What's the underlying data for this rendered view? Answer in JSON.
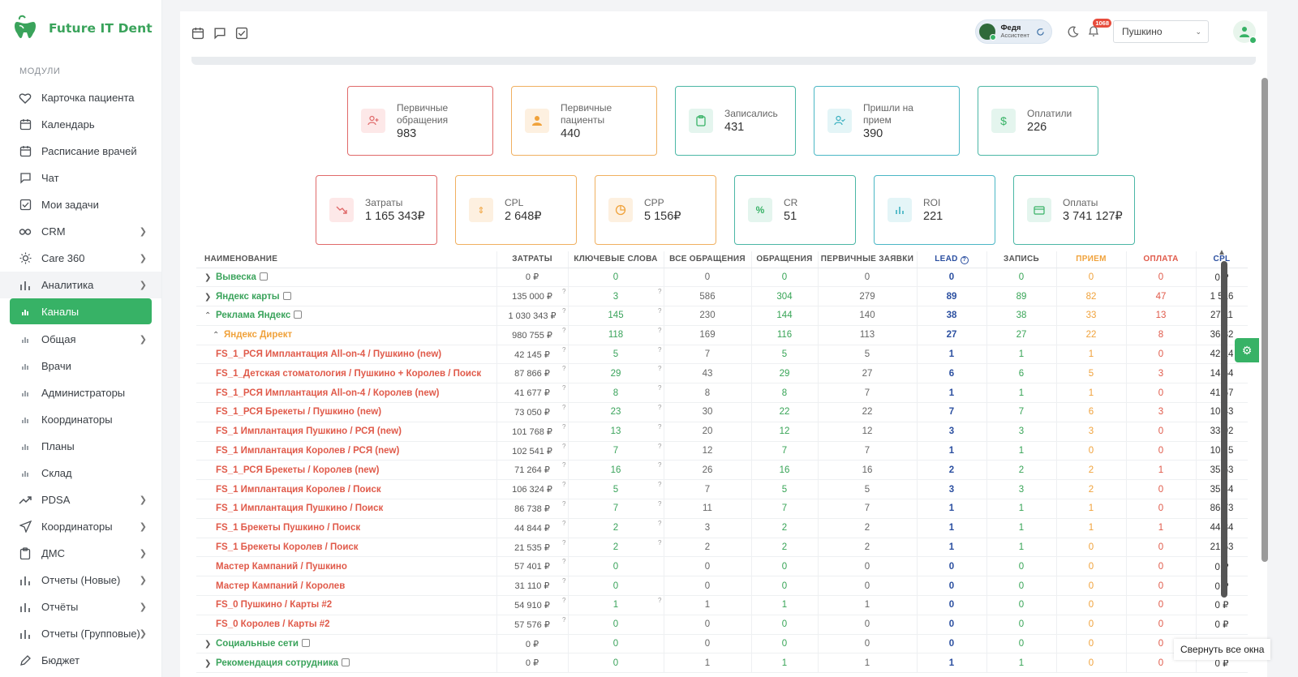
{
  "brand": {
    "name": "Future IT Dent"
  },
  "sidebar": {
    "section_label": "МОДУЛИ",
    "items": [
      {
        "label": "Карточка пациента",
        "icon": "heart-icon"
      },
      {
        "label": "Календарь",
        "icon": "calendar-icon"
      },
      {
        "label": "Расписание врачей",
        "icon": "calendar-icon"
      },
      {
        "label": "Чат",
        "icon": "chat-icon"
      },
      {
        "label": "Мои задачи",
        "icon": "checkbox-icon"
      },
      {
        "label": "CRM",
        "icon": "infinity-icon"
      },
      {
        "label": "Care 360",
        "icon": "sun-icon"
      },
      {
        "label": "Аналитика",
        "icon": "bar-chart-icon"
      },
      {
        "label": "Каналы"
      },
      {
        "label": "Общая"
      },
      {
        "label": "Врачи"
      },
      {
        "label": "Администраторы"
      },
      {
        "label": "Координаторы"
      },
      {
        "label": "Планы"
      },
      {
        "label": "Склад"
      },
      {
        "label": "PDSA",
        "icon": "trend-icon"
      },
      {
        "label": "Координаторы",
        "icon": "send-icon"
      },
      {
        "label": "ДМС",
        "icon": "clipboard-icon"
      },
      {
        "label": "Отчеты (Новые)",
        "icon": "bar-chart-icon"
      },
      {
        "label": "Отчёты",
        "icon": "bar-chart-icon"
      },
      {
        "label": "Отчеты (Групповые)",
        "icon": "bar-chart-icon"
      },
      {
        "label": "Бюджет",
        "icon": "pen-icon"
      }
    ]
  },
  "topbar": {
    "user_name": "Федя",
    "user_role": "Ассистент",
    "notif_count": "1068",
    "location": "Пушкино"
  },
  "kpi_top": [
    {
      "label": "Первичные обращения",
      "value": "983"
    },
    {
      "label": "Первичные пациенты",
      "value": "440"
    },
    {
      "label": "Записались",
      "value": "431"
    },
    {
      "label": "Пришли на прием",
      "value": "390"
    },
    {
      "label": "Оплатили",
      "value": "226"
    }
  ],
  "kpi_bottom": [
    {
      "label": "Затраты",
      "value": "1 165 343₽"
    },
    {
      "label": "CPL",
      "value": "2 648₽"
    },
    {
      "label": "CPP",
      "value": "5 156₽"
    },
    {
      "label": "CR",
      "value": "51"
    },
    {
      "label": "ROI",
      "value": "221"
    },
    {
      "label": "Оплаты",
      "value": "3 741 127₽"
    }
  ],
  "table": {
    "headers": [
      "НАИМЕНОВАНИЕ",
      "ЗАТРАТЫ",
      "КЛЮЧЕВЫЕ СЛОВА",
      "ВСЕ ОБРАЩЕНИЯ",
      "ОБРАЩЕНИЯ",
      "ПЕРВИЧНЫЕ ЗАЯВКИ",
      "LEAD",
      "ЗАПИСЬ",
      "ПРИЕМ",
      "ОПЛАТА",
      "CPL"
    ],
    "rows": [
      {
        "name": "Вывеска",
        "cost": "0 ₽",
        "keywords": "0",
        "all": "0",
        "req": "0",
        "primary": "0",
        "lead": "0",
        "record": "0",
        "visit": "0",
        "paid": "0",
        "cpl": "0 ₽"
      },
      {
        "name": "Яндекс карты",
        "cost": "135 000 ₽",
        "keywords": "3",
        "all": "586",
        "req": "304",
        "primary": "279",
        "lead": "89",
        "record": "89",
        "visit": "82",
        "paid": "47",
        "cpl": "1 516"
      },
      {
        "name": "Реклама Яндекс",
        "cost": "1 030 343 ₽",
        "keywords": "145",
        "all": "230",
        "req": "144",
        "primary": "140",
        "lead": "38",
        "record": "38",
        "visit": "33",
        "paid": "13",
        "cpl": "27 11"
      },
      {
        "name": "Яндекс Директ",
        "cost": "980 755 ₽",
        "keywords": "118",
        "all": "169",
        "req": "116",
        "primary": "113",
        "lead": "27",
        "record": "27",
        "visit": "22",
        "paid": "8",
        "cpl": "36 32"
      },
      {
        "name": "FS_1_РСЯ Имплантация All-on-4 / Пушкино (new)",
        "cost": "42 145 ₽",
        "keywords": "5",
        "all": "7",
        "req": "5",
        "primary": "5",
        "lead": "1",
        "record": "1",
        "visit": "1",
        "paid": "0",
        "cpl": "42 14"
      },
      {
        "name": "FS_1_Детская стоматология / Пушкино + Королев / Поиск",
        "cost": "87 866 ₽",
        "keywords": "29",
        "all": "43",
        "req": "29",
        "primary": "27",
        "lead": "6",
        "record": "6",
        "visit": "5",
        "paid": "3",
        "cpl": "14 64"
      },
      {
        "name": "FS_1_РСЯ Имплантация All-on-4 / Королев (new)",
        "cost": "41 677 ₽",
        "keywords": "8",
        "all": "8",
        "req": "8",
        "primary": "7",
        "lead": "1",
        "record": "1",
        "visit": "1",
        "paid": "0",
        "cpl": "41 67"
      },
      {
        "name": "FS_1_РСЯ Брекеты / Пушкино (new)",
        "cost": "73 050 ₽",
        "keywords": "23",
        "all": "30",
        "req": "22",
        "primary": "22",
        "lead": "7",
        "record": "7",
        "visit": "6",
        "paid": "3",
        "cpl": "10 43"
      },
      {
        "name": "FS_1 Имплантация Пушкино / РСЯ (new)",
        "cost": "101 768 ₽",
        "keywords": "13",
        "all": "20",
        "req": "12",
        "primary": "12",
        "lead": "3",
        "record": "3",
        "visit": "3",
        "paid": "0",
        "cpl": "33 92"
      },
      {
        "name": "FS_1 Имплантация Королев / РСЯ (new)",
        "cost": "102 541 ₽",
        "keywords": "7",
        "all": "12",
        "req": "7",
        "primary": "7",
        "lead": "1",
        "record": "1",
        "visit": "0",
        "paid": "0",
        "cpl": "102 5"
      },
      {
        "name": "FS_1_РСЯ Брекеты / Королев (new)",
        "cost": "71 264 ₽",
        "keywords": "16",
        "all": "26",
        "req": "16",
        "primary": "16",
        "lead": "2",
        "record": "2",
        "visit": "2",
        "paid": "1",
        "cpl": "35 63"
      },
      {
        "name": "FS_1 Имплантация Королев / Поиск",
        "cost": "106 324 ₽",
        "keywords": "5",
        "all": "7",
        "req": "5",
        "primary": "5",
        "lead": "3",
        "record": "3",
        "visit": "2",
        "paid": "0",
        "cpl": "35 44"
      },
      {
        "name": "FS_1 Имплантация Пушкино / Поиск",
        "cost": "86 738 ₽",
        "keywords": "7",
        "all": "11",
        "req": "7",
        "primary": "7",
        "lead": "1",
        "record": "1",
        "visit": "1",
        "paid": "0",
        "cpl": "86 73"
      },
      {
        "name": "FS_1 Брекеты Пушкино / Поиск",
        "cost": "44 844 ₽",
        "keywords": "2",
        "all": "3",
        "req": "2",
        "primary": "2",
        "lead": "1",
        "record": "1",
        "visit": "1",
        "paid": "1",
        "cpl": "44 84"
      },
      {
        "name": "FS_1 Брекеты Королев / Поиск",
        "cost": "21 535 ₽",
        "keywords": "2",
        "all": "2",
        "req": "2",
        "primary": "2",
        "lead": "1",
        "record": "1",
        "visit": "0",
        "paid": "0",
        "cpl": "21 53"
      },
      {
        "name": "Мастер Кампаний / Пушкино",
        "cost": "57 401 ₽",
        "keywords": "0",
        "all": "0",
        "req": "0",
        "primary": "0",
        "lead": "0",
        "record": "0",
        "visit": "0",
        "paid": "0",
        "cpl": "0 ₽"
      },
      {
        "name": "Мастер Кампаний / Королев",
        "cost": "31 110 ₽",
        "keywords": "0",
        "all": "0",
        "req": "0",
        "primary": "0",
        "lead": "0",
        "record": "0",
        "visit": "0",
        "paid": "0",
        "cpl": "0 ₽"
      },
      {
        "name": "FS_0 Пушкино / Карты #2",
        "cost": "54 910 ₽",
        "keywords": "1",
        "all": "1",
        "req": "1",
        "primary": "1",
        "lead": "0",
        "record": "0",
        "visit": "0",
        "paid": "0",
        "cpl": "0 ₽"
      },
      {
        "name": "FS_0 Королев / Карты #2",
        "cost": "57 576 ₽",
        "keywords": "0",
        "all": "0",
        "req": "0",
        "primary": "0",
        "lead": "0",
        "record": "0",
        "visit": "0",
        "paid": "0",
        "cpl": "0 ₽"
      },
      {
        "name": "Социальные сети",
        "cost": "0 ₽",
        "keywords": "0",
        "all": "0",
        "req": "0",
        "primary": "0",
        "lead": "0",
        "record": "0",
        "visit": "0",
        "paid": "0",
        "cpl": "0 ₽"
      },
      {
        "name": "Рекомендация сотрудника",
        "cost": "0 ₽",
        "keywords": "0",
        "all": "1",
        "req": "1",
        "primary": "1",
        "lead": "1",
        "record": "1",
        "visit": "0",
        "paid": "0",
        "cpl": "0 ₽"
      }
    ]
  },
  "toast": {
    "label": "Свернуть все окна"
  }
}
